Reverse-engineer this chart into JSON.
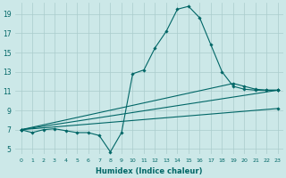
{
  "xlabel": "Humidex (Indice chaleur)",
  "ylabel": "",
  "background_color": "#cce8e8",
  "grid_color": "#aacccc",
  "line_color": "#006666",
  "xlim": [
    -0.5,
    23.5
  ],
  "ylim": [
    4.5,
    20.2
  ],
  "xticks": [
    0,
    1,
    2,
    3,
    4,
    5,
    6,
    7,
    8,
    9,
    10,
    11,
    12,
    13,
    14,
    15,
    16,
    17,
    18,
    19,
    20,
    21,
    22,
    23
  ],
  "yticks": [
    5,
    7,
    9,
    11,
    13,
    15,
    17,
    19
  ],
  "series": [
    {
      "x": [
        0,
        1,
        2,
        3,
        4,
        5,
        6,
        7,
        8,
        9,
        10,
        11,
        12,
        13,
        14,
        15,
        16,
        17,
        18,
        19,
        20,
        21,
        22,
        23
      ],
      "y": [
        7.0,
        6.7,
        7.0,
        7.1,
        6.9,
        6.7,
        6.7,
        6.4,
        4.7,
        6.7,
        12.8,
        13.2,
        15.5,
        17.2,
        19.5,
        19.8,
        18.6,
        15.8,
        13.0,
        11.5,
        11.2,
        11.1,
        11.1,
        11.1
      ]
    },
    {
      "x": [
        0,
        23
      ],
      "y": [
        7.0,
        11.1
      ]
    },
    {
      "x": [
        0,
        19,
        20,
        21,
        22,
        23
      ],
      "y": [
        7.0,
        11.8,
        11.5,
        11.2,
        11.1,
        11.1
      ]
    },
    {
      "x": [
        0,
        23
      ],
      "y": [
        7.0,
        9.2
      ]
    }
  ]
}
